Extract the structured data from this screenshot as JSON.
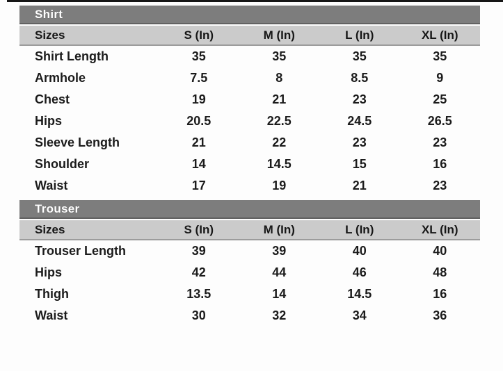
{
  "page": {
    "background_color": "#fdfdfd",
    "top_line_color": "#161616"
  },
  "colors": {
    "section_bar_bg": "#7d7d7d",
    "section_bar_text": "#ffffff",
    "header_row_bg": "#cbcbcb",
    "header_row_border": "#9c9c9c",
    "data_text": "#1b1b1b"
  },
  "size_chart": {
    "sections": [
      {
        "title": "Shirt",
        "columns": [
          "Sizes",
          "S (In)",
          "M (In)",
          "L (In)",
          "XL (In)"
        ],
        "rows": [
          {
            "label": "Shirt Length",
            "values": [
              "35",
              "35",
              "35",
              "35"
            ]
          },
          {
            "label": "Armhole",
            "values": [
              "7.5",
              "8",
              "8.5",
              "9"
            ]
          },
          {
            "label": "Chest",
            "values": [
              "19",
              "21",
              "23",
              "25"
            ]
          },
          {
            "label": "Hips",
            "values": [
              "20.5",
              "22.5",
              "24.5",
              "26.5"
            ]
          },
          {
            "label": "Sleeve Length",
            "values": [
              "21",
              "22",
              "23",
              "23"
            ]
          },
          {
            "label": "Shoulder",
            "values": [
              "14",
              "14.5",
              "15",
              "16"
            ]
          },
          {
            "label": "Waist",
            "values": [
              "17",
              "19",
              "21",
              "23"
            ]
          }
        ]
      },
      {
        "title": "Trouser",
        "columns": [
          "Sizes",
          "S (In)",
          "M (In)",
          "L (In)",
          "XL (In)"
        ],
        "rows": [
          {
            "label": "Trouser Length",
            "values": [
              "39",
              "39",
              "40",
              "40"
            ]
          },
          {
            "label": "Hips",
            "values": [
              "42",
              "44",
              "46",
              "48"
            ]
          },
          {
            "label": "Thigh",
            "values": [
              "13.5",
              "14",
              "14.5",
              "16"
            ]
          },
          {
            "label": "Waist",
            "values": [
              "30",
              "32",
              "34",
              "36"
            ]
          }
        ]
      }
    ]
  }
}
